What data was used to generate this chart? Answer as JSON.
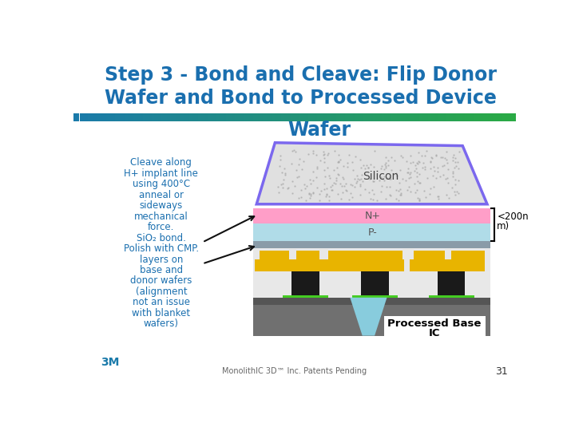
{
  "title_line1": "Step 3 - Bond and Cleave: Flip Donor",
  "title_line2": "Wafer and Bond to Processed Device",
  "title_line3": "Wafer",
  "title_color": "#1a6faf",
  "bg_color": "#ffffff",
  "left_text_lines": [
    "Cleave along",
    "H+ implant line",
    "using 400°C",
    "anneal or",
    "sideways",
    "mechanical",
    "force.",
    "SiO₂ bond.",
    "Polish with CMP.",
    "layers on",
    "base and",
    "donor wafers",
    "(alignment",
    "not an issue",
    "with blanket",
    "wafers)"
  ],
  "left_text_color": "#1a6faf",
  "silicon_label": "Silicon",
  "n_plus_label": "N+",
  "p_minus_label": "P-",
  "processed_label_line1": "Processed Base",
  "processed_label_line2": "IC",
  "size_label_line1": "<200n",
  "size_label_line2": "m)",
  "footer_text": "MonolithIC 3D™ Inc. Patents Pending",
  "page_num": "31",
  "silicon_color": "#e0e0e0",
  "silicon_border": "#7b68ee",
  "n_plus_color": "#ff9ec8",
  "p_minus_color": "#b0dce8",
  "gray_bond_color": "#8a9ba8",
  "device_bg_color": "#e8e8e8",
  "yellow_color": "#e8b400",
  "black_color": "#1a1a1a",
  "green_color": "#44cc22",
  "light_blue_via": "#88ccdd",
  "dark_gray_base": "#707070",
  "darker_gray_base": "#555555",
  "bar_left_color": "#1a7aaa",
  "bar_right_color": "#44aa44",
  "arrow_color": "#111111"
}
